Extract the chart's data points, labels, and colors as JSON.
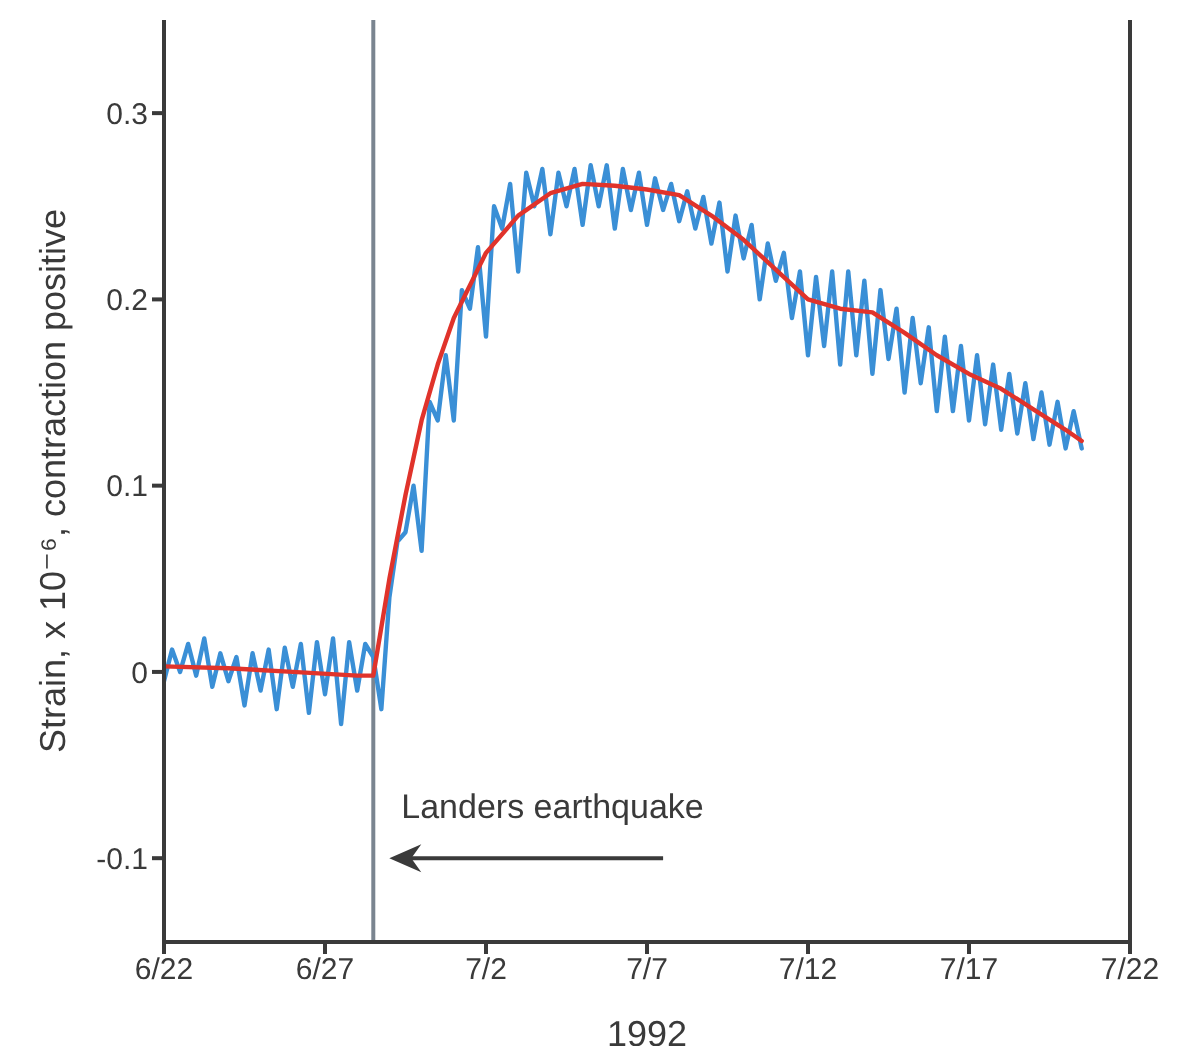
{
  "chart_data": {
    "type": "line",
    "xlabel": "1992",
    "ylabel": "Strain, x 10⁻⁶, contraction positive",
    "xlim": [
      "1992-06-22",
      "1992-07-22"
    ],
    "xticks": [
      {
        "value": "1992-06-22",
        "label": "6/22"
      },
      {
        "value": "1992-06-27",
        "label": "6/27"
      },
      {
        "value": "1992-07-02",
        "label": "7/2"
      },
      {
        "value": "1992-07-07",
        "label": "7/7"
      },
      {
        "value": "1992-07-12",
        "label": "7/12"
      },
      {
        "value": "1992-07-17",
        "label": "7/17"
      },
      {
        "value": "1992-07-22",
        "label": "7/22"
      }
    ],
    "ylim": [
      -0.145,
      0.35
    ],
    "yticks": [
      -0.1,
      0,
      0.1,
      0.2,
      0.3
    ],
    "grid": false,
    "marker": "none",
    "line_style": "solid",
    "ref_lines": [
      {
        "axis": "x",
        "value": "1992-06-28T12:00",
        "color": "#7a8590"
      }
    ],
    "annotations": [
      {
        "text": "Landers earthquake",
        "x": "1992-06-28T12:00",
        "y": -0.1
      }
    ],
    "series": [
      {
        "color": "#3a8fd6",
        "x": [
          "1992-06-22T00:00",
          "1992-06-22T06:00",
          "1992-06-22T12:00",
          "1992-06-22T18:00",
          "1992-06-23T00:00",
          "1992-06-23T06:00",
          "1992-06-23T12:00",
          "1992-06-23T18:00",
          "1992-06-24T00:00",
          "1992-06-24T06:00",
          "1992-06-24T12:00",
          "1992-06-24T18:00",
          "1992-06-25T00:00",
          "1992-06-25T06:00",
          "1992-06-25T12:00",
          "1992-06-25T18:00",
          "1992-06-26T00:00",
          "1992-06-26T06:00",
          "1992-06-26T12:00",
          "1992-06-26T18:00",
          "1992-06-27T00:00",
          "1992-06-27T06:00",
          "1992-06-27T12:00",
          "1992-06-27T18:00",
          "1992-06-28T00:00",
          "1992-06-28T06:00",
          "1992-06-28T12:00",
          "1992-06-28T18:00",
          "1992-06-29T00:00",
          "1992-06-29T06:00",
          "1992-06-29T12:00",
          "1992-06-29T18:00",
          "1992-06-30T00:00",
          "1992-06-30T06:00",
          "1992-06-30T12:00",
          "1992-06-30T18:00",
          "1992-07-01T00:00",
          "1992-07-01T06:00",
          "1992-07-01T12:00",
          "1992-07-01T18:00",
          "1992-07-02T00:00",
          "1992-07-02T06:00",
          "1992-07-02T12:00",
          "1992-07-02T18:00",
          "1992-07-03T00:00",
          "1992-07-03T06:00",
          "1992-07-03T12:00",
          "1992-07-03T18:00",
          "1992-07-04T00:00",
          "1992-07-04T06:00",
          "1992-07-04T12:00",
          "1992-07-04T18:00",
          "1992-07-05T00:00",
          "1992-07-05T06:00",
          "1992-07-05T12:00",
          "1992-07-05T18:00",
          "1992-07-06T00:00",
          "1992-07-06T06:00",
          "1992-07-06T12:00",
          "1992-07-06T18:00",
          "1992-07-07T00:00",
          "1992-07-07T06:00",
          "1992-07-07T12:00",
          "1992-07-07T18:00",
          "1992-07-08T00:00",
          "1992-07-08T06:00",
          "1992-07-08T12:00",
          "1992-07-08T18:00",
          "1992-07-09T00:00",
          "1992-07-09T06:00",
          "1992-07-09T12:00",
          "1992-07-09T18:00",
          "1992-07-10T00:00",
          "1992-07-10T06:00",
          "1992-07-10T12:00",
          "1992-07-10T18:00",
          "1992-07-11T00:00",
          "1992-07-11T06:00",
          "1992-07-11T12:00",
          "1992-07-11T18:00",
          "1992-07-12T00:00",
          "1992-07-12T06:00",
          "1992-07-12T12:00",
          "1992-07-12T18:00",
          "1992-07-13T00:00",
          "1992-07-13T06:00",
          "1992-07-13T12:00",
          "1992-07-13T18:00",
          "1992-07-14T00:00",
          "1992-07-14T06:00",
          "1992-07-14T12:00",
          "1992-07-14T18:00",
          "1992-07-15T00:00",
          "1992-07-15T06:00",
          "1992-07-15T12:00",
          "1992-07-15T18:00",
          "1992-07-16T00:00",
          "1992-07-16T06:00",
          "1992-07-16T12:00",
          "1992-07-16T18:00",
          "1992-07-17T00:00",
          "1992-07-17T06:00",
          "1992-07-17T12:00",
          "1992-07-17T18:00",
          "1992-07-18T00:00",
          "1992-07-18T06:00",
          "1992-07-18T12:00",
          "1992-07-18T18:00",
          "1992-07-19T00:00",
          "1992-07-19T06:00",
          "1992-07-19T12:00",
          "1992-07-19T18:00",
          "1992-07-20T00:00",
          "1992-07-20T06:00",
          "1992-07-20T12:00"
        ],
        "values": [
          -0.005,
          0.012,
          0.0,
          0.015,
          -0.002,
          0.018,
          -0.008,
          0.01,
          -0.005,
          0.008,
          -0.018,
          0.01,
          -0.01,
          0.012,
          -0.02,
          0.013,
          -0.008,
          0.015,
          -0.022,
          0.016,
          -0.012,
          0.018,
          -0.028,
          0.016,
          -0.01,
          0.015,
          0.008,
          -0.02,
          0.04,
          0.07,
          0.075,
          0.1,
          0.065,
          0.145,
          0.135,
          0.17,
          0.135,
          0.205,
          0.195,
          0.228,
          0.18,
          0.25,
          0.238,
          0.262,
          0.215,
          0.268,
          0.25,
          0.27,
          0.235,
          0.268,
          0.25,
          0.27,
          0.24,
          0.272,
          0.25,
          0.272,
          0.238,
          0.27,
          0.248,
          0.268,
          0.24,
          0.265,
          0.248,
          0.262,
          0.242,
          0.258,
          0.238,
          0.255,
          0.23,
          0.252,
          0.215,
          0.245,
          0.222,
          0.24,
          0.2,
          0.23,
          0.21,
          0.225,
          0.19,
          0.215,
          0.17,
          0.212,
          0.175,
          0.215,
          0.165,
          0.215,
          0.17,
          0.21,
          0.16,
          0.205,
          0.168,
          0.195,
          0.15,
          0.19,
          0.155,
          0.185,
          0.14,
          0.18,
          0.14,
          0.175,
          0.135,
          0.17,
          0.133,
          0.165,
          0.13,
          0.16,
          0.128,
          0.155,
          0.125,
          0.15,
          0.122,
          0.145,
          0.12,
          0.14,
          0.12
        ]
      },
      {
        "color": "#e0332b",
        "x": [
          "1992-06-22T00:00",
          "1992-06-24T00:00",
          "1992-06-26T00:00",
          "1992-06-28T00:00",
          "1992-06-28T12:00",
          "1992-06-29T00:00",
          "1992-06-29T12:00",
          "1992-06-30T00:00",
          "1992-06-30T12:00",
          "1992-07-01T00:00",
          "1992-07-02T00:00",
          "1992-07-03T00:00",
          "1992-07-04T00:00",
          "1992-07-05T00:00",
          "1992-07-06T00:00",
          "1992-07-07T00:00",
          "1992-07-08T00:00",
          "1992-07-09T00:00",
          "1992-07-10T00:00",
          "1992-07-11T00:00",
          "1992-07-12T00:00",
          "1992-07-13T00:00",
          "1992-07-14T00:00",
          "1992-07-15T00:00",
          "1992-07-16T00:00",
          "1992-07-17T00:00",
          "1992-07-18T00:00",
          "1992-07-19T00:00",
          "1992-07-20T00:00",
          "1992-07-20T12:00"
        ],
        "values": [
          0.003,
          0.002,
          0.0,
          -0.002,
          -0.002,
          0.05,
          0.095,
          0.135,
          0.165,
          0.19,
          0.225,
          0.245,
          0.257,
          0.262,
          0.261,
          0.259,
          0.256,
          0.245,
          0.232,
          0.216,
          0.2,
          0.195,
          0.193,
          0.182,
          0.17,
          0.16,
          0.152,
          0.141,
          0.13,
          0.124
        ]
      }
    ]
  }
}
